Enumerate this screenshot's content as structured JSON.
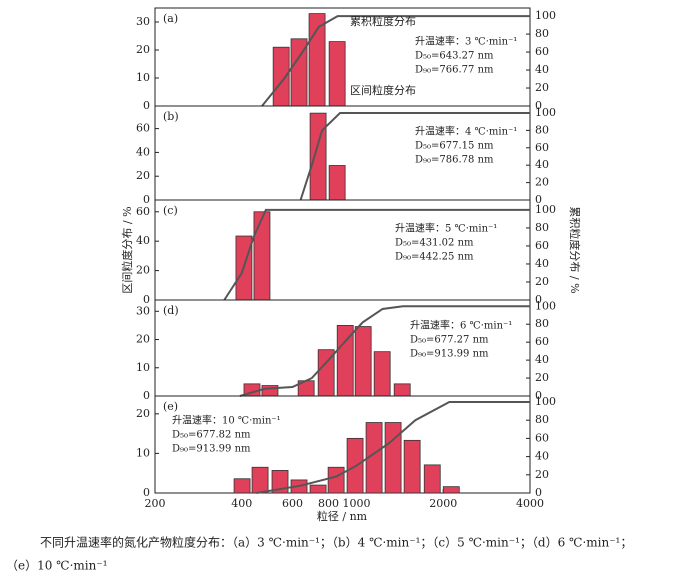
{
  "x_label": "粒径 / nm",
  "y_label": "区间粒度分布 / %",
  "y2_label": "累积粒度分布 / %",
  "caption": [
    "不同升温速率的氮化产物粒度分布：（a）3 ℃·min⁻¹；（b）4 ℃·min⁻¹；（c）5 ℃·min⁻¹；（d）6 ℃·min⁻¹；",
    "（e）10 ℃·min⁻¹"
  ],
  "chart_data": [
    {
      "type": "bar",
      "label": "(a)",
      "xscale": "log",
      "xlim": [
        200,
        4000
      ],
      "ylim": [
        0,
        35
      ],
      "yticks": [
        0,
        10,
        20,
        30
      ],
      "y2lim": [
        0,
        109
      ],
      "y2ticks": [
        0,
        20,
        40,
        60,
        80,
        100
      ],
      "color": "#e0405a",
      "line_color": "#555555",
      "x": [
        548,
        632,
        730,
        857
      ],
      "values": [
        21,
        24,
        33,
        23
      ],
      "cumulative": {
        "axis": "y2",
        "x": [
          470,
          560,
          650,
          740,
          860,
          4000
        ],
        "values": [
          0,
          30,
          60,
          88,
          100,
          100
        ]
      },
      "annotations": [
        "升温速率：3 ℃·min⁻¹",
        "D₅₀=643.27 nm",
        "D₉₀=766.77 nm"
      ],
      "curve_labels": [
        "累积粒度分布",
        "区间粒度分布"
      ]
    },
    {
      "type": "bar",
      "label": "(b)",
      "xscale": "log",
      "xlim": [
        200,
        4000
      ],
      "ylim": [
        0,
        79
      ],
      "yticks": [
        0,
        20,
        40,
        60
      ],
      "y2lim": [
        0,
        108
      ],
      "y2ticks": [
        0,
        20,
        40,
        60,
        80,
        100
      ],
      "color": "#e0405a",
      "line_color": "#555555",
      "x": [
        736,
        857
      ],
      "values": [
        73,
        29
      ],
      "cumulative": {
        "axis": "y2",
        "x": [
          640,
          700,
          760,
          877,
          4000
        ],
        "values": [
          0,
          40,
          80,
          100,
          100
        ]
      },
      "annotations": [
        "升温速率：4 ℃·min⁻¹",
        "D₅₀=677.15 nm",
        "D₉₀=786.78 nm"
      ]
    },
    {
      "type": "bar",
      "label": "(c)",
      "xscale": "log",
      "xlim": [
        200,
        4000
      ],
      "ylim": [
        0,
        68
      ],
      "yticks": [
        0,
        20,
        40,
        60
      ],
      "y2lim": [
        0,
        111
      ],
      "y2ticks": [
        0,
        20,
        40,
        60,
        80,
        100
      ],
      "color": "#e0405a",
      "line_color": "#555555",
      "x": [
        407,
        470
      ],
      "values": [
        43.5,
        60
      ],
      "cumulative": {
        "axis": "y2",
        "x": [
          348,
          400,
          440,
          485,
          4000
        ],
        "values": [
          0,
          30,
          70,
          100,
          100
        ]
      },
      "annotations": [
        "升温速率：5 ℃·min⁻¹",
        "D₅₀=431.02 nm",
        "D₉₀=442.25 nm"
      ]
    },
    {
      "type": "bar",
      "label": "(d)",
      "xscale": "log",
      "xlim": [
        200,
        4000
      ],
      "ylim": [
        0,
        34
      ],
      "yticks": [
        0,
        10,
        20,
        30
      ],
      "y2lim": [
        0,
        107
      ],
      "y2ticks": [
        0,
        20,
        40,
        60,
        80,
        100
      ],
      "color": "#e0405a",
      "line_color": "#555555",
      "x": [
        434,
        501,
        669,
        785,
        914,
        1055,
        1228,
        1441
      ],
      "values": [
        4.3,
        3.7,
        5.4,
        16.4,
        25,
        24.6,
        15.7,
        4.3
      ],
      "cumulative": {
        "axis": "y2",
        "x": [
          394,
          480,
          600,
          700,
          800,
          920,
          1050,
          1230,
          1450,
          4000
        ],
        "values": [
          0,
          8,
          10,
          20,
          40,
          62,
          82,
          97,
          100,
          100
        ]
      },
      "annotations": [
        "升温速率：6 ℃·min⁻¹",
        "D₅₀=677.27 nm",
        "D₉₀=913.99 nm"
      ]
    },
    {
      "type": "bar",
      "label": "(e)",
      "xscale": "log",
      "xlim": [
        200,
        4000
      ],
      "ylim": [
        0,
        24.5
      ],
      "yticks": [
        0,
        10,
        20
      ],
      "y2lim": [
        0,
        106.6
      ],
      "y2ticks": [
        0,
        20,
        40,
        60,
        80,
        100
      ],
      "color": "#e0405a",
      "line_color": "#555555",
      "xticks": [
        200,
        400,
        600,
        800,
        1000,
        2000,
        4000
      ],
      "x": [
        401,
        463,
        543,
        632,
        736,
        850,
        989,
        1151,
        1340,
        1560,
        1832,
        2133
      ],
      "values": [
        3.6,
        6.5,
        5.7,
        3.3,
        2,
        6.5,
        13.8,
        17.8,
        17.8,
        13.3,
        7.1,
        1.6
      ],
      "cumulative": {
        "axis": "y2",
        "x": [
          450,
          640,
          850,
          1000,
          1300,
          1600,
          2100,
          4000
        ],
        "values": [
          0,
          8,
          18,
          30,
          55,
          80,
          100,
          100
        ]
      },
      "annotations": [
        "升温速率：10 ℃·min⁻¹",
        "D₅₀=677.82 nm",
        "D₉₀=913.99 nm"
      ]
    }
  ]
}
